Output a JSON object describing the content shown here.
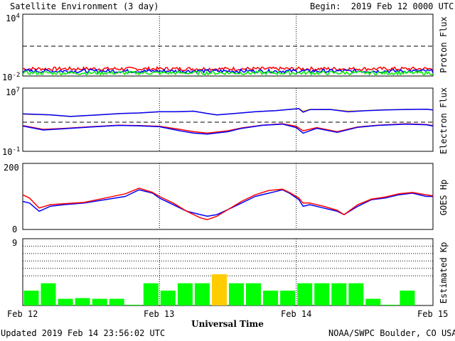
{
  "header": {
    "title": "Satellite Environment (3 day)",
    "begin": "Begin:  2019 Feb 12 0000 UTC"
  },
  "footer": {
    "updated": "Updated 2019 Feb 14 23:56:02 UTC",
    "credit": "NOAA/SWPC Boulder, CO USA"
  },
  "colors": {
    "red": "#ff0000",
    "blue": "#0000ff",
    "green": "#00ee00",
    "orange": "#ffa500",
    "kp_green": "#00ff00",
    "kp_yellow": "#ffcc00"
  },
  "chart_data": [
    {
      "type": "line",
      "panel": "proton",
      "ylabel": "Proton Flux",
      "yscale": "log",
      "ylim": [
        0.01,
        10000
      ],
      "ytick_labels": {
        "top_base": "10",
        "top_exp": "4",
        "bottom_base": "10",
        "bottom_exp": "-2"
      },
      "threshold": 10,
      "series": [
        {
          "color": "red",
          "level": 0.05
        },
        {
          "color": "blue",
          "level": 0.03
        },
        {
          "color": "green",
          "level": 0.02
        }
      ]
    },
    {
      "type": "line",
      "panel": "electron",
      "ylabel": "Electron Flux",
      "yscale": "log",
      "ylim": [
        0.1,
        10000000
      ],
      "ytick_labels": {
        "top_base": "10",
        "top_exp": "7",
        "bottom_base": "10",
        "bottom_exp": "-1"
      },
      "threshold": 1000,
      "series": [
        {
          "color": "orange",
          "x": [
            0,
            0.2,
            0.35,
            0.55,
            0.72,
            0.85,
            1.0,
            1.12,
            1.25,
            1.35,
            1.42,
            1.55,
            1.7,
            1.85,
            1.95,
            2.02,
            2.05,
            2.1,
            2.25,
            2.38,
            2.5,
            2.65,
            2.8,
            2.95,
            3.0
          ],
          "y": [
            5000,
            4000,
            2500,
            4000,
            6000,
            7000,
            10000,
            10000,
            12000,
            6000,
            4000,
            6000,
            10000,
            14000,
            20000,
            25000,
            12000,
            20000,
            20000,
            12000,
            14000,
            18000,
            20000,
            22000,
            18000
          ]
        },
        {
          "color": "blue",
          "x": [
            0,
            0.2,
            0.35,
            0.55,
            0.72,
            0.85,
            1.0,
            1.12,
            1.25,
            1.35,
            1.42,
            1.55,
            1.7,
            1.85,
            1.95,
            2.02,
            2.05,
            2.1,
            2.25,
            2.38,
            2.5,
            2.65,
            2.8,
            2.95,
            3.0
          ],
          "y": [
            5500,
            4200,
            2600,
            4100,
            6100,
            7100,
            10100,
            10200,
            12100,
            6200,
            4100,
            6100,
            10200,
            14200,
            20200,
            25200,
            9000,
            19000,
            19500,
            10000,
            13500,
            17500,
            19500,
            21500,
            17500
          ]
        },
        {
          "color": "red",
          "x": [
            0,
            0.15,
            0.3,
            0.5,
            0.7,
            0.85,
            1.0,
            1.15,
            1.25,
            1.35,
            1.5,
            1.6,
            1.75,
            1.9,
            2.0,
            2.05,
            2.15,
            2.3,
            2.45,
            2.6,
            2.8,
            2.95,
            3.0
          ],
          "y": [
            180,
            60,
            80,
            130,
            200,
            180,
            150,
            60,
            30,
            20,
            40,
            90,
            200,
            300,
            150,
            40,
            100,
            30,
            120,
            200,
            300,
            250,
            180
          ]
        },
        {
          "color": "blue",
          "x": [
            0,
            0.15,
            0.3,
            0.5,
            0.7,
            0.85,
            1.0,
            1.15,
            1.25,
            1.35,
            1.5,
            1.6,
            1.75,
            1.9,
            2.0,
            2.05,
            2.15,
            2.3,
            2.45,
            2.6,
            2.8,
            2.95,
            3.0
          ],
          "y": [
            160,
            50,
            70,
            120,
            190,
            170,
            130,
            40,
            20,
            15,
            30,
            80,
            190,
            280,
            100,
            20,
            80,
            25,
            110,
            190,
            280,
            230,
            160
          ]
        }
      ]
    },
    {
      "type": "line",
      "panel": "hp",
      "ylabel": "GOES Hp",
      "ylim": [
        0,
        200
      ],
      "yticks": [
        "0",
        "200"
      ],
      "series": [
        {
          "color": "blue",
          "x": [
            0,
            0.05,
            0.12,
            0.2,
            0.3,
            0.45,
            0.6,
            0.75,
            0.85,
            0.95,
            1.0,
            1.1,
            1.2,
            1.3,
            1.35,
            1.42,
            1.5,
            1.6,
            1.7,
            1.8,
            1.9,
            1.95,
            2.02,
            2.05,
            2.1,
            2.2,
            2.3,
            2.35,
            2.45,
            2.55,
            2.65,
            2.75,
            2.85,
            2.95,
            3.0
          ],
          "y": [
            85,
            80,
            55,
            70,
            75,
            80,
            90,
            100,
            120,
            110,
            95,
            75,
            55,
            45,
            40,
            45,
            60,
            80,
            100,
            110,
            120,
            110,
            90,
            70,
            75,
            65,
            55,
            45,
            70,
            90,
            95,
            105,
            110,
            100,
            100
          ]
        },
        {
          "color": "red",
          "x": [
            0,
            0.05,
            0.12,
            0.2,
            0.3,
            0.45,
            0.6,
            0.75,
            0.85,
            0.95,
            1.0,
            1.1,
            1.2,
            1.3,
            1.35,
            1.42,
            1.5,
            1.6,
            1.7,
            1.8,
            1.9,
            1.95,
            2.02,
            2.05,
            2.1,
            2.2,
            2.3,
            2.35,
            2.45,
            2.55,
            2.65,
            2.75,
            2.85,
            2.95,
            3.0
          ],
          "y": [
            105,
            95,
            65,
            75,
            78,
            82,
            95,
            108,
            125,
            112,
            100,
            80,
            55,
            35,
            30,
            40,
            60,
            85,
            105,
            118,
            122,
            112,
            95,
            80,
            80,
            70,
            58,
            45,
            75,
            92,
            98,
            108,
            112,
            105,
            102
          ]
        }
      ]
    },
    {
      "type": "bar",
      "panel": "kp",
      "ylabel": "Estimated Kp",
      "ylim": [
        0,
        9
      ],
      "yticks": [
        "9"
      ],
      "x_start_label": "Feb 12",
      "xlabel": "Universal Time",
      "xticks": [
        "Feb 12",
        "Feb 13",
        "Feb 14",
        "Feb 15"
      ],
      "values": [
        2.0,
        3.0,
        0.9,
        1.0,
        0.9,
        0.9,
        0.1,
        3.0,
        2.0,
        3.0,
        3.0,
        4.2,
        3.0,
        3.0,
        2.0,
        2.0,
        3.0,
        3.0,
        3.0,
        3.0,
        0.9,
        0.1,
        2.0,
        0.0
      ],
      "bar_colors": [
        "green",
        "green",
        "green",
        "green",
        "green",
        "green",
        "green",
        "green",
        "green",
        "green",
        "green",
        "yellow",
        "green",
        "green",
        "green",
        "green",
        "green",
        "green",
        "green",
        "green",
        "green",
        "green",
        "green",
        "green"
      ]
    }
  ]
}
